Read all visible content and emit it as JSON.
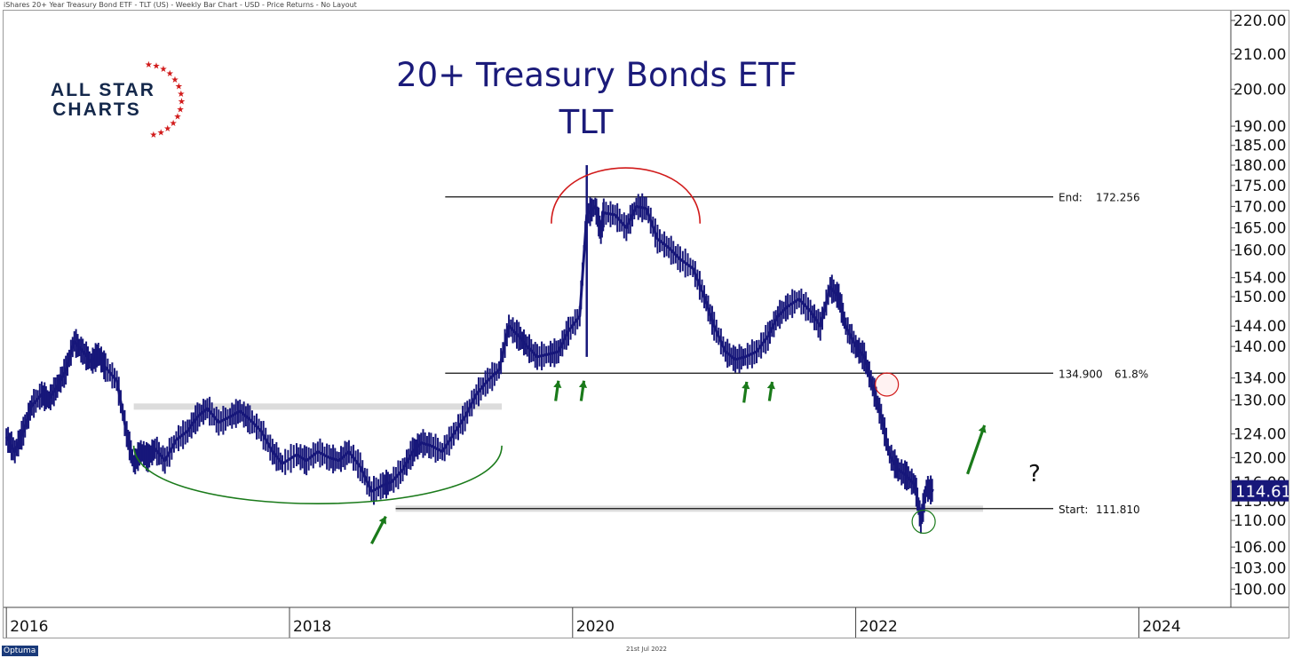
{
  "header": {
    "caption": "iShares 20+ Year Treasury Bond ETF - TLT (US) - Weekly Bar Chart - USD - Price Returns - No Layout"
  },
  "footer": {
    "brand": "Optuma",
    "date": "21st Jul 2022"
  },
  "logo": {
    "line1": "ALL STAR",
    "line2": "CHARTS"
  },
  "colors": {
    "series": "#17177a",
    "title": "#1b1b7a",
    "accent_red": "#d11a1a",
    "accent_green": "#1a7a1a",
    "band": "#dcdcdc"
  },
  "chart_data": {
    "type": "bar",
    "title": "20+ Treasury Bonds ETF",
    "subtitle": "TLT",
    "y_scale": "log",
    "ylim": [
      97.5,
      223
    ],
    "xlim": [
      2015.98,
      2024.65
    ],
    "y_ticks": [
      {
        "value": 220,
        "label": "220.00"
      },
      {
        "value": 210,
        "label": "210.00"
      },
      {
        "value": 200,
        "label": "200.00"
      },
      {
        "value": 190,
        "label": "190.00"
      },
      {
        "value": 185,
        "label": "185.00"
      },
      {
        "value": 180,
        "label": "180.00"
      },
      {
        "value": 175,
        "label": "175.00"
      },
      {
        "value": 170,
        "label": "170.00"
      },
      {
        "value": 165,
        "label": "165.00"
      },
      {
        "value": 160,
        "label": "160.00"
      },
      {
        "value": 154,
        "label": "154.00"
      },
      {
        "value": 150,
        "label": "150.00"
      },
      {
        "value": 144,
        "label": "144.00"
      },
      {
        "value": 140,
        "label": "140.00"
      },
      {
        "value": 134,
        "label": "134.00"
      },
      {
        "value": 130,
        "label": "130.00"
      },
      {
        "value": 124,
        "label": "124.00"
      },
      {
        "value": 120,
        "label": "120.00"
      },
      {
        "value": 116,
        "label": "116.00"
      },
      {
        "value": 113,
        "label": "113.00"
      },
      {
        "value": 110,
        "label": "110.00"
      },
      {
        "value": 106,
        "label": "106.00"
      },
      {
        "value": 103,
        "label": "103.00"
      },
      {
        "value": 100,
        "label": "100.00"
      }
    ],
    "x_ticks": [
      {
        "value": 2016,
        "label": "2016"
      },
      {
        "value": 2018,
        "label": "2018"
      },
      {
        "value": 2020,
        "label": "2020"
      },
      {
        "value": 2022,
        "label": "2022"
      },
      {
        "value": 2024,
        "label": "2024"
      }
    ],
    "last_price": {
      "value": 114.61,
      "label": "114.61"
    },
    "levels": [
      {
        "value": 172.256,
        "x_start": 2019.1,
        "label": "End:",
        "value_label": "172.256",
        "pct_label": ""
      },
      {
        "value": 134.9,
        "x_start": 2019.1,
        "label": "",
        "value_label": "134.900",
        "pct_label": "61.8%"
      },
      {
        "value": 111.81,
        "x_start": 2018.75,
        "label": "Start:",
        "value_label": "111.810",
        "pct_label": ""
      }
    ],
    "bands": [
      {
        "x0": 2016.9,
        "x1": 2019.5,
        "value": 128.8
      },
      {
        "x0": 2018.75,
        "x1": 2022.9,
        "value": 111.8
      }
    ],
    "annotations": {
      "question_mark": "?",
      "red_arc": {
        "x0": 2019.85,
        "x1": 2020.9,
        "top": 184,
        "base": 166
      },
      "green_arc": {
        "x0": 2016.9,
        "x1": 2019.5,
        "bottom": 109.6,
        "base": 122
      },
      "red_circle": {
        "x": 2022.22,
        "y": 132.8
      },
      "green_circle": {
        "x": 2022.48,
        "y": 109.8
      },
      "up_arrows": [
        {
          "x": 2018.58,
          "y": 106.5,
          "dx": 0.1,
          "dy": 110.6,
          "color": "green"
        },
        {
          "x": 2019.88,
          "y": 129.8,
          "dx": 0.02,
          "dy": 133.5,
          "color": "green"
        },
        {
          "x": 2020.06,
          "y": 129.8,
          "dx": 0.02,
          "dy": 133.5,
          "color": "green"
        },
        {
          "x": 2021.21,
          "y": 129.5,
          "dx": 0.02,
          "dy": 133.3,
          "color": "green"
        },
        {
          "x": 2021.39,
          "y": 129.8,
          "dx": 0.02,
          "dy": 133.3,
          "color": "green"
        },
        {
          "x": 2022.79,
          "y": 117.3,
          "dx": 0.12,
          "dy": 125.5,
          "color": "green"
        }
      ]
    },
    "series": [
      {
        "name": "TLT weekly",
        "x": [
          2016.0,
          2016.06,
          2016.12,
          2016.18,
          2016.25,
          2016.3,
          2016.36,
          2016.42,
          2016.48,
          2016.54,
          2016.6,
          2016.65,
          2016.7,
          2016.78,
          2016.85,
          2016.9,
          2016.95,
          2017.0,
          2017.05,
          2017.12,
          2017.2,
          2017.28,
          2017.35,
          2017.42,
          2017.5,
          2017.58,
          2017.65,
          2017.72,
          2017.8,
          2017.88,
          2017.95,
          2018.05,
          2018.12,
          2018.2,
          2018.28,
          2018.35,
          2018.42,
          2018.5,
          2018.58,
          2018.66,
          2018.72,
          2018.8,
          2018.87,
          2018.93,
          2019.0,
          2019.08,
          2019.16,
          2019.24,
          2019.32,
          2019.4,
          2019.48,
          2019.55,
          2019.62,
          2019.68,
          2019.75,
          2019.83,
          2019.9,
          2019.97,
          2020.05,
          2020.1,
          2020.16,
          2020.2,
          2020.22,
          2020.3,
          2020.38,
          2020.45,
          2020.52,
          2020.6,
          2020.68,
          2020.76,
          2020.85,
          2020.93,
          2021.0,
          2021.08,
          2021.15,
          2021.22,
          2021.3,
          2021.38,
          2021.45,
          2021.52,
          2021.6,
          2021.68,
          2021.75,
          2021.82,
          2021.88,
          2021.93,
          2022.0,
          2022.06,
          2022.12,
          2022.18,
          2022.24,
          2022.3,
          2022.36,
          2022.42,
          2022.46,
          2022.5,
          2022.55
        ],
        "values": [
          123.5,
          121.0,
          124.5,
          129.0,
          131.0,
          130.0,
          132.5,
          135.5,
          141.0,
          139.0,
          137.0,
          138.5,
          136.0,
          133.5,
          124.0,
          119.0,
          121.0,
          120.0,
          121.5,
          119.5,
          123.0,
          124.5,
          127.0,
          128.5,
          126.0,
          127.0,
          128.0,
          126.5,
          124.5,
          121.0,
          119.0,
          120.5,
          119.5,
          121.0,
          120.0,
          119.5,
          121.0,
          118.5,
          114.5,
          115.5,
          116.0,
          118.0,
          121.0,
          122.5,
          122.0,
          121.0,
          124.0,
          127.0,
          131.0,
          133.5,
          135.5,
          144.0,
          142.0,
          140.0,
          138.0,
          138.5,
          139.0,
          143.0,
          146.0,
          168.0,
          170.0,
          164.0,
          168.5,
          168.0,
          165.0,
          170.0,
          169.5,
          162.5,
          160.5,
          158.0,
          156.0,
          150.0,
          144.0,
          139.0,
          137.5,
          138.0,
          139.0,
          142.0,
          146.0,
          148.0,
          149.5,
          147.0,
          144.0,
          152.0,
          150.0,
          144.0,
          140.0,
          138.0,
          132.5,
          127.0,
          120.5,
          118.0,
          117.0,
          115.5,
          110.0,
          115.0,
          114.61
        ]
      }
    ]
  }
}
